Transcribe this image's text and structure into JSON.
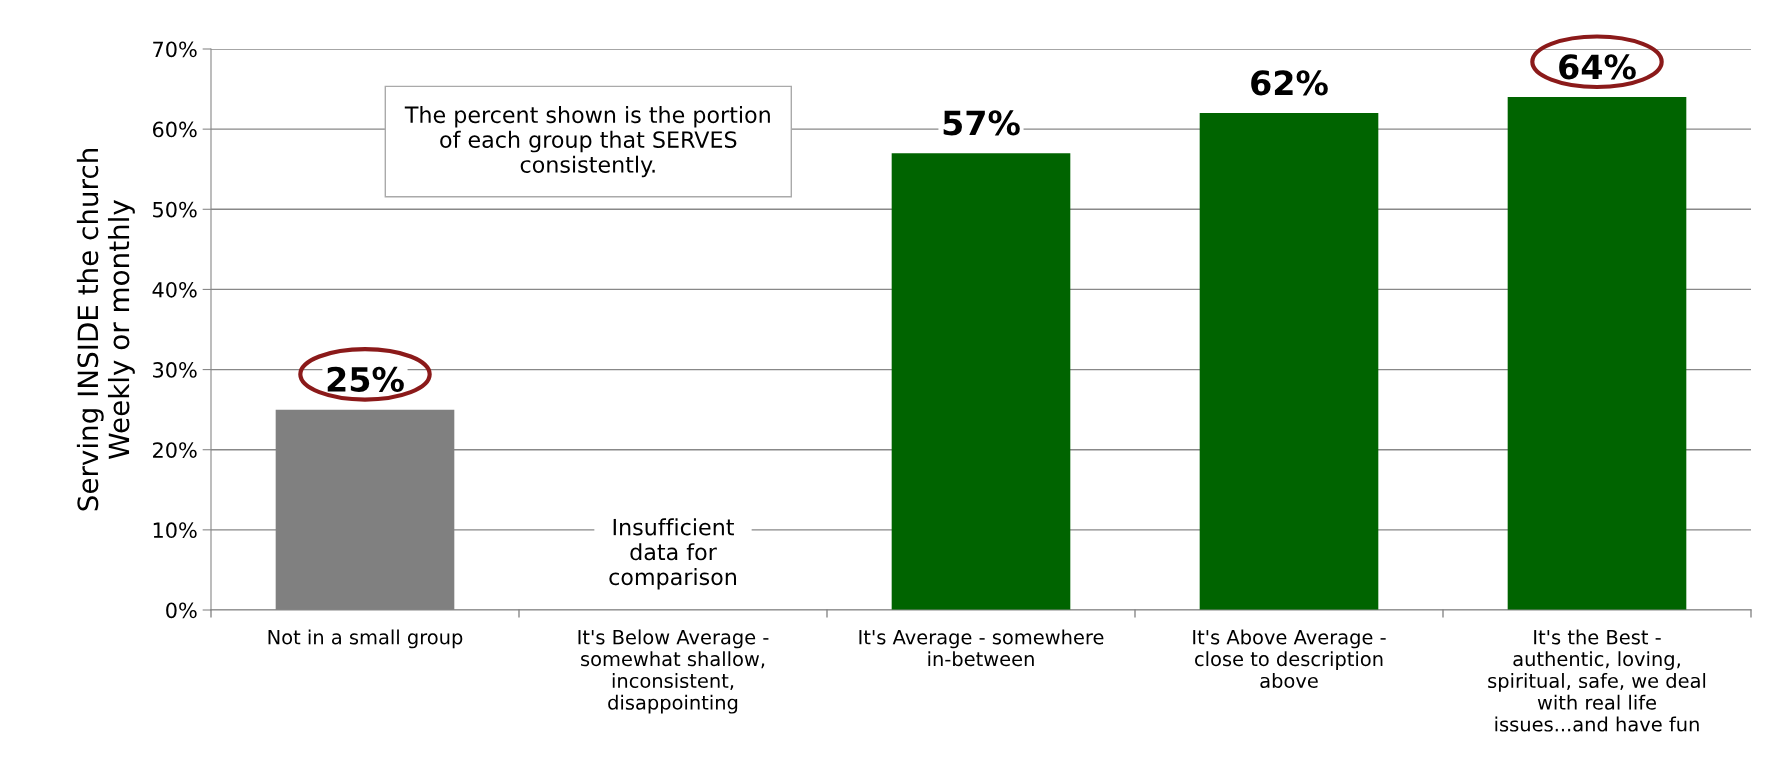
{
  "chart_data": {
    "type": "bar",
    "ylabel": "Serving INSIDE the church\nWeekly or monthly",
    "categories": [
      "Not in a small group",
      "It's Below Average - somewhat shallow, inconsistent, disappointing",
      "It's Average - somewhere in-between",
      "It's Above Average - close to description above",
      "It's the Best - authentic, loving, spiritual, safe, we deal with real life issues...and have fun"
    ],
    "values": [
      25,
      null,
      57,
      62,
      64
    ],
    "colors": [
      "#808080",
      "#808080",
      "#006400",
      "#006400",
      "#006400"
    ],
    "value_labels": [
      "25%",
      null,
      "57%",
      "62%",
      "64%"
    ],
    "ylim": [
      0,
      70
    ],
    "yticks": [
      {
        "value": 0,
        "label": "0%"
      },
      {
        "value": 10,
        "label": "10%"
      },
      {
        "value": 20,
        "label": "20%"
      },
      {
        "value": 30,
        "label": "30%"
      },
      {
        "value": 40,
        "label": "40%"
      },
      {
        "value": 50,
        "label": "50%"
      },
      {
        "value": 60,
        "label": "60%"
      },
      {
        "value": 70,
        "label": "70%"
      }
    ],
    "grid": "y",
    "legend": false,
    "annotations": [
      "The percent shown is the portion\nof each group that SERVES\nconsistently.",
      "Insufficient\ndata for\ncomparison"
    ]
  }
}
